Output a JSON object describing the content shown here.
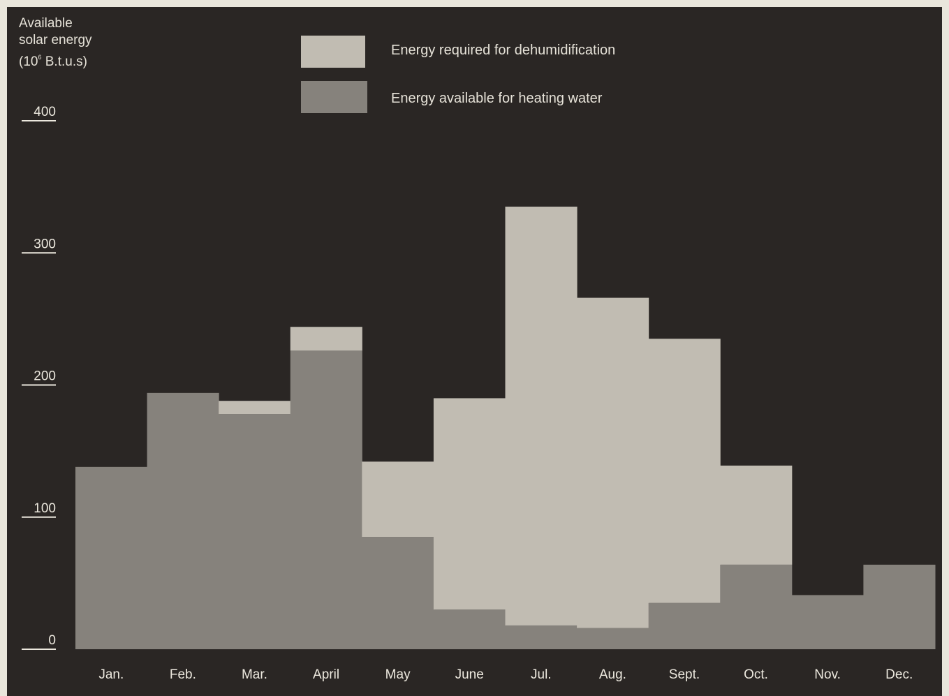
{
  "chart_data": {
    "type": "bar",
    "categories": [
      "Jan.",
      "Feb.",
      "Mar.",
      "April",
      "May",
      "June",
      "Jul.",
      "Aug.",
      "Sept.",
      "Oct.",
      "Nov.",
      "Dec."
    ],
    "series": [
      {
        "name": "Energy required for dehumidification",
        "values": [
          0,
          0,
          10,
          18,
          57,
          160,
          317,
          250,
          200,
          75,
          0,
          0
        ]
      },
      {
        "name": "Energy available for heating water",
        "values": [
          138,
          194,
          178,
          226,
          85,
          30,
          18,
          16,
          35,
          64,
          41,
          64
        ]
      }
    ],
    "stacking": "light series drawn on top of dark series (stacked)",
    "ylabel": {
      "line1": "Available",
      "line2": "solar energy",
      "line3_pre": "(10",
      "line3_sup": "6",
      "line3_post": " B.t.u.s)"
    },
    "yticks": [
      "400",
      "300",
      "200",
      "100",
      "0"
    ],
    "ylim": [
      0,
      400
    ],
    "grid": false,
    "legend_position": "top-center"
  },
  "colors": {
    "background": "#2a2624",
    "page": "#e9e6dc",
    "dehumidification": "#c1bcb2",
    "heating_water": "#86827c",
    "text": "#e6e2d8"
  }
}
